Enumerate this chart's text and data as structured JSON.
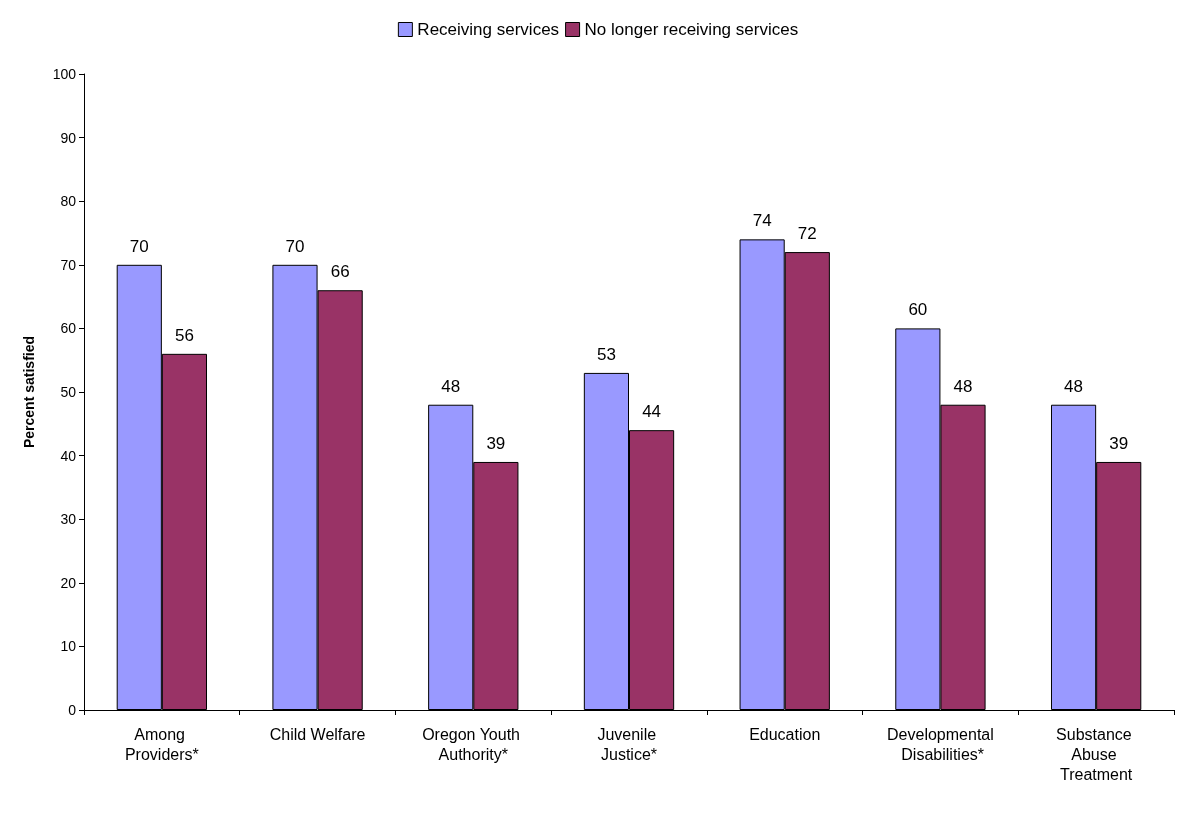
{
  "chart_data": {
    "type": "bar",
    "ylabel": "Percent satisfied",
    "categories": [
      "Among Providers*",
      "Child Welfare",
      "Oregon Youth Authority*",
      "Juvenile Justice*",
      "Education",
      "Developmental Disabilities*",
      "Substance Abuse Treatment"
    ],
    "series": [
      {
        "name": "Receiving services",
        "color": "#9999ff",
        "values": [
          70,
          70,
          48,
          53,
          74,
          60,
          48
        ]
      },
      {
        "name": "No longer receiving services",
        "color": "#993366",
        "values": [
          56,
          66,
          39,
          44,
          72,
          48,
          39
        ]
      }
    ],
    "ylim": [
      0,
      100
    ],
    "yticks": [
      0,
      10,
      20,
      30,
      40,
      50,
      60,
      70,
      80,
      90,
      100
    ],
    "data_labels": true,
    "grid": false,
    "legend": "top"
  }
}
